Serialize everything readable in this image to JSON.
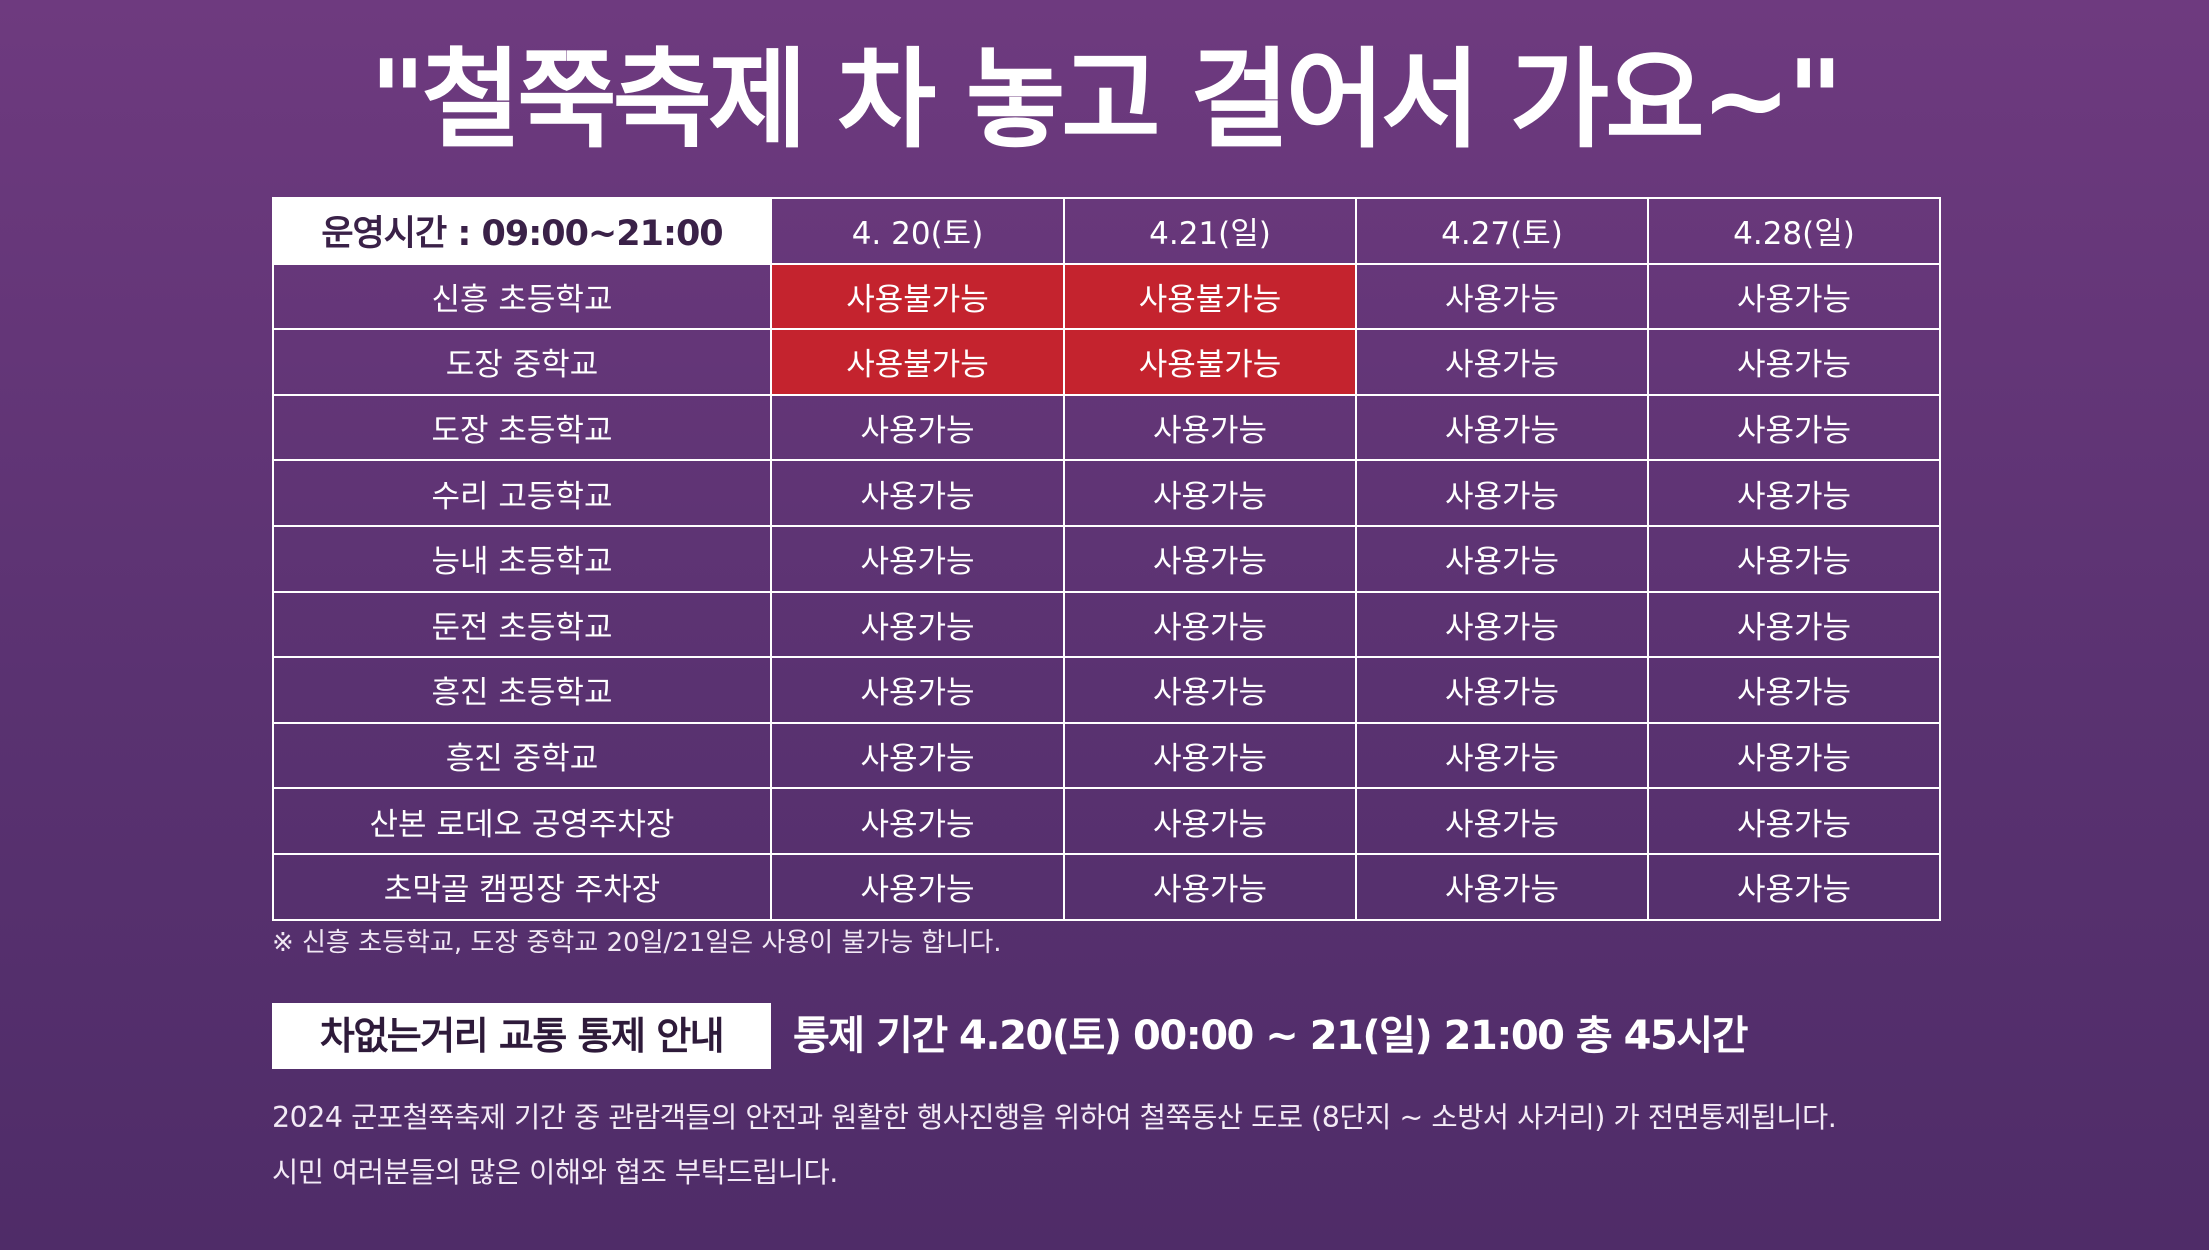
{
  "title": "\"철쭉축제 차 놓고 걸어서 가요~\"",
  "table": {
    "hours_label": "운영시간 : 09:00~21:00",
    "dates": [
      "4. 20(토)",
      "4.21(일)",
      "4.27(토)",
      "4.28(일)"
    ],
    "rows": [
      {
        "name": "신흥 초등학교",
        "status": [
          "사용불가능",
          "사용불가능",
          "사용가능",
          "사용가능"
        ]
      },
      {
        "name": "도장 중학교",
        "status": [
          "사용불가능",
          "사용불가능",
          "사용가능",
          "사용가능"
        ]
      },
      {
        "name": "도장 초등학교",
        "status": [
          "사용가능",
          "사용가능",
          "사용가능",
          "사용가능"
        ]
      },
      {
        "name": "수리 고등학교",
        "status": [
          "사용가능",
          "사용가능",
          "사용가능",
          "사용가능"
        ]
      },
      {
        "name": "능내 초등학교",
        "status": [
          "사용가능",
          "사용가능",
          "사용가능",
          "사용가능"
        ]
      },
      {
        "name": "둔전 초등학교",
        "status": [
          "사용가능",
          "사용가능",
          "사용가능",
          "사용가능"
        ]
      },
      {
        "name": "흥진 초등학교",
        "status": [
          "사용가능",
          "사용가능",
          "사용가능",
          "사용가능"
        ]
      },
      {
        "name": "흥진 중학교",
        "status": [
          "사용가능",
          "사용가능",
          "사용가능",
          "사용가능"
        ]
      },
      {
        "name": "산본 로데오 공영주차장",
        "status": [
          "사용가능",
          "사용가능",
          "사용가능",
          "사용가능"
        ]
      },
      {
        "name": "초막골 캠핑장 주차장",
        "status": [
          "사용가능",
          "사용가능",
          "사용가능",
          "사용가능"
        ]
      }
    ]
  },
  "footnote": "※ 신흥 초등학교, 도장 중학교 20일/21일은 사용이 불가능 합니다.",
  "notice": {
    "tag": "차없는거리 교통 통제 안내",
    "period": "통제 기간 4.20(토) 00:00 ~ 21(일) 21:00 총 45시간",
    "line1": "2024 군포철쭉축제 기간 중 관람객들의 안전과 원활한 행사진행을 위하여 철쭉동산 도로 (8단지 ~ 소방서 사거리) 가 전면통제됩니다.",
    "line2": "시민 여러분들의 많은 이해와 협조 부탁드립니다."
  },
  "colors": {
    "background": "#5f3474",
    "unavailable": "#c4232e",
    "border": "#ffffff"
  }
}
